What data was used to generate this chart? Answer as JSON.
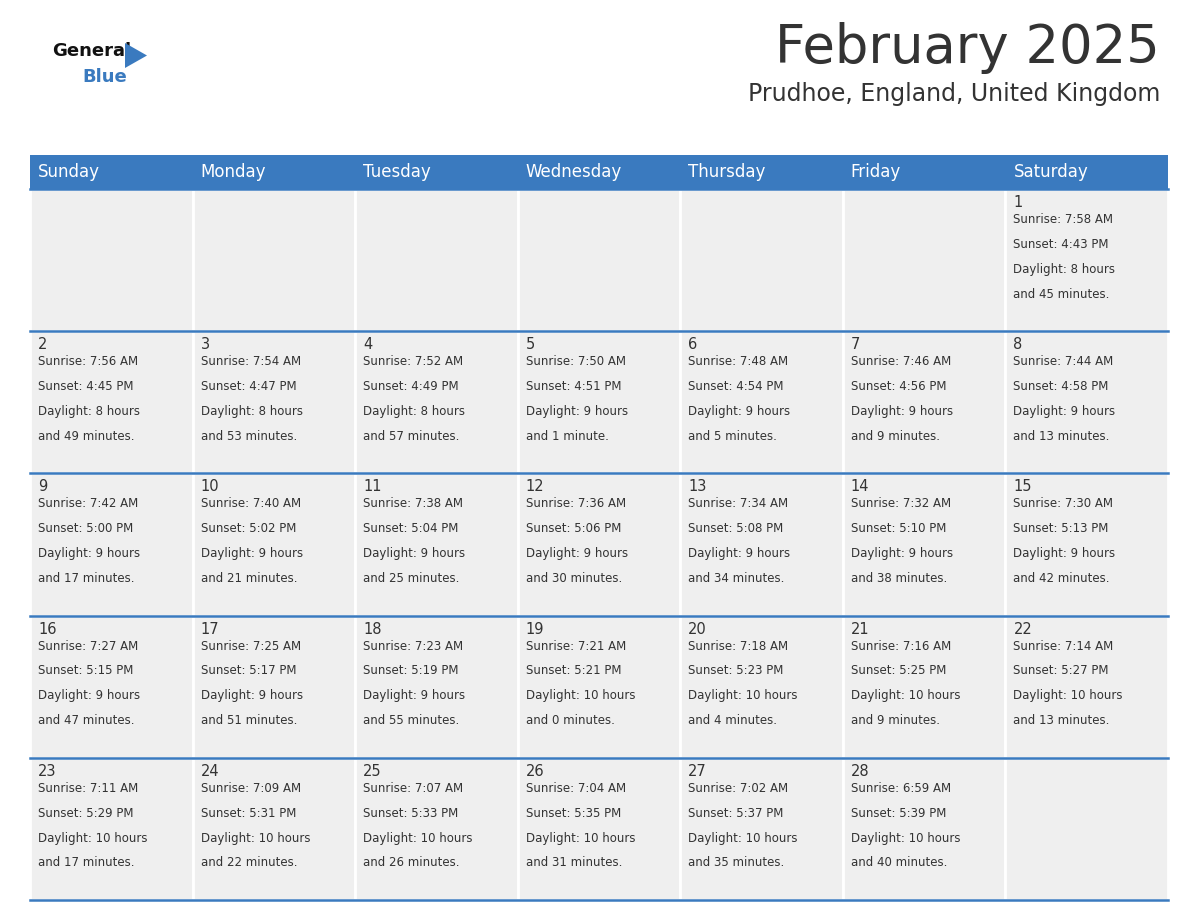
{
  "title": "February 2025",
  "subtitle": "Prudhoe, England, United Kingdom",
  "header_color": "#3a7abf",
  "header_text_color": "#ffffff",
  "day_names": [
    "Sunday",
    "Monday",
    "Tuesday",
    "Wednesday",
    "Thursday",
    "Friday",
    "Saturday"
  ],
  "title_fontsize": 38,
  "subtitle_fontsize": 17,
  "header_fontsize": 12,
  "cell_day_fontsize": 10.5,
  "cell_text_fontsize": 8.5,
  "background_color": "#ffffff",
  "cell_bg_color": "#efefef",
  "border_color": "#3a7abf",
  "text_color": "#333333",
  "logo_general_color": "#111111",
  "logo_blue_color": "#3a7abf",
  "logo_triangle_color": "#3a7abf",
  "days": [
    {
      "day": 1,
      "col": 6,
      "row": 0,
      "sunrise": "7:58 AM",
      "sunset": "4:43 PM",
      "daylight": "8 hours and 45 minutes"
    },
    {
      "day": 2,
      "col": 0,
      "row": 1,
      "sunrise": "7:56 AM",
      "sunset": "4:45 PM",
      "daylight": "8 hours and 49 minutes"
    },
    {
      "day": 3,
      "col": 1,
      "row": 1,
      "sunrise": "7:54 AM",
      "sunset": "4:47 PM",
      "daylight": "8 hours and 53 minutes"
    },
    {
      "day": 4,
      "col": 2,
      "row": 1,
      "sunrise": "7:52 AM",
      "sunset": "4:49 PM",
      "daylight": "8 hours and 57 minutes"
    },
    {
      "day": 5,
      "col": 3,
      "row": 1,
      "sunrise": "7:50 AM",
      "sunset": "4:51 PM",
      "daylight": "9 hours and 1 minute"
    },
    {
      "day": 6,
      "col": 4,
      "row": 1,
      "sunrise": "7:48 AM",
      "sunset": "4:54 PM",
      "daylight": "9 hours and 5 minutes"
    },
    {
      "day": 7,
      "col": 5,
      "row": 1,
      "sunrise": "7:46 AM",
      "sunset": "4:56 PM",
      "daylight": "9 hours and 9 minutes"
    },
    {
      "day": 8,
      "col": 6,
      "row": 1,
      "sunrise": "7:44 AM",
      "sunset": "4:58 PM",
      "daylight": "9 hours and 13 minutes"
    },
    {
      "day": 9,
      "col": 0,
      "row": 2,
      "sunrise": "7:42 AM",
      "sunset": "5:00 PM",
      "daylight": "9 hours and 17 minutes"
    },
    {
      "day": 10,
      "col": 1,
      "row": 2,
      "sunrise": "7:40 AM",
      "sunset": "5:02 PM",
      "daylight": "9 hours and 21 minutes"
    },
    {
      "day": 11,
      "col": 2,
      "row": 2,
      "sunrise": "7:38 AM",
      "sunset": "5:04 PM",
      "daylight": "9 hours and 25 minutes"
    },
    {
      "day": 12,
      "col": 3,
      "row": 2,
      "sunrise": "7:36 AM",
      "sunset": "5:06 PM",
      "daylight": "9 hours and 30 minutes"
    },
    {
      "day": 13,
      "col": 4,
      "row": 2,
      "sunrise": "7:34 AM",
      "sunset": "5:08 PM",
      "daylight": "9 hours and 34 minutes"
    },
    {
      "day": 14,
      "col": 5,
      "row": 2,
      "sunrise": "7:32 AM",
      "sunset": "5:10 PM",
      "daylight": "9 hours and 38 minutes"
    },
    {
      "day": 15,
      "col": 6,
      "row": 2,
      "sunrise": "7:30 AM",
      "sunset": "5:13 PM",
      "daylight": "9 hours and 42 minutes"
    },
    {
      "day": 16,
      "col": 0,
      "row": 3,
      "sunrise": "7:27 AM",
      "sunset": "5:15 PM",
      "daylight": "9 hours and 47 minutes"
    },
    {
      "day": 17,
      "col": 1,
      "row": 3,
      "sunrise": "7:25 AM",
      "sunset": "5:17 PM",
      "daylight": "9 hours and 51 minutes"
    },
    {
      "day": 18,
      "col": 2,
      "row": 3,
      "sunrise": "7:23 AM",
      "sunset": "5:19 PM",
      "daylight": "9 hours and 55 minutes"
    },
    {
      "day": 19,
      "col": 3,
      "row": 3,
      "sunrise": "7:21 AM",
      "sunset": "5:21 PM",
      "daylight": "10 hours and 0 minutes"
    },
    {
      "day": 20,
      "col": 4,
      "row": 3,
      "sunrise": "7:18 AM",
      "sunset": "5:23 PM",
      "daylight": "10 hours and 4 minutes"
    },
    {
      "day": 21,
      "col": 5,
      "row": 3,
      "sunrise": "7:16 AM",
      "sunset": "5:25 PM",
      "daylight": "10 hours and 9 minutes"
    },
    {
      "day": 22,
      "col": 6,
      "row": 3,
      "sunrise": "7:14 AM",
      "sunset": "5:27 PM",
      "daylight": "10 hours and 13 minutes"
    },
    {
      "day": 23,
      "col": 0,
      "row": 4,
      "sunrise": "7:11 AM",
      "sunset": "5:29 PM",
      "daylight": "10 hours and 17 minutes"
    },
    {
      "day": 24,
      "col": 1,
      "row": 4,
      "sunrise": "7:09 AM",
      "sunset": "5:31 PM",
      "daylight": "10 hours and 22 minutes"
    },
    {
      "day": 25,
      "col": 2,
      "row": 4,
      "sunrise": "7:07 AM",
      "sunset": "5:33 PM",
      "daylight": "10 hours and 26 minutes"
    },
    {
      "day": 26,
      "col": 3,
      "row": 4,
      "sunrise": "7:04 AM",
      "sunset": "5:35 PM",
      "daylight": "10 hours and 31 minutes"
    },
    {
      "day": 27,
      "col": 4,
      "row": 4,
      "sunrise": "7:02 AM",
      "sunset": "5:37 PM",
      "daylight": "10 hours and 35 minutes"
    },
    {
      "day": 28,
      "col": 5,
      "row": 4,
      "sunrise": "6:59 AM",
      "sunset": "5:39 PM",
      "daylight": "10 hours and 40 minutes"
    }
  ]
}
